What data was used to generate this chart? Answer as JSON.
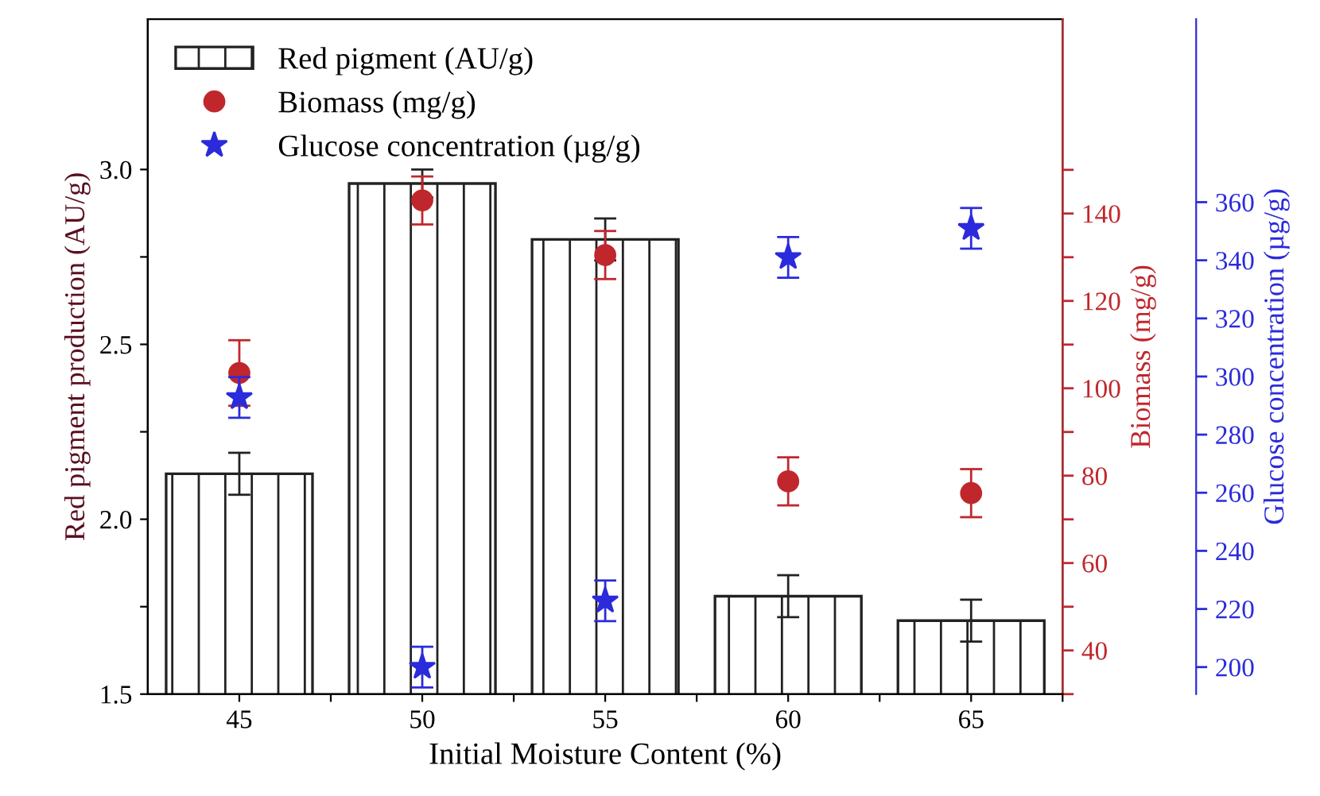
{
  "chart_data": {
    "type": "bar",
    "xlabel": "Initial Moisture Content (%)",
    "ylabel": "Red pigment production (AU/g)",
    "y2label": "Biomass (mg/g)",
    "y3label": "Glucose concentration (µg/g)",
    "x": [
      45,
      50,
      55,
      60,
      65
    ],
    "xlim": [
      42.5,
      67.5
    ],
    "xticks": [
      45,
      {
        "value": 47.5,
        "label": null
      },
      50,
      {
        "value": 52.5,
        "label": null
      },
      55,
      {
        "value": 57.5,
        "label": null
      },
      60,
      {
        "value": 62.5,
        "label": null
      },
      65,
      {
        "value": 67.5,
        "label": null
      }
    ],
    "ylim": [
      1.5,
      3.43
    ],
    "yticks": [
      1.5,
      {
        "value": 1.75,
        "label": null
      },
      {
        "value": 2,
        "label": "2.0"
      },
      {
        "value": 2.25,
        "label": null
      },
      2.5,
      {
        "value": 2.75,
        "label": null
      },
      {
        "value": 3,
        "label": "3.0"
      }
    ],
    "y2lim": [
      30,
      184.5
    ],
    "y2ticks": [
      {
        "value": 30,
        "label": null
      },
      40,
      {
        "value": 50,
        "label": null
      },
      60,
      {
        "value": 70,
        "label": null
      },
      80,
      {
        "value": 90,
        "label": null
      },
      100,
      {
        "value": 110,
        "label": null
      },
      120,
      {
        "value": 130,
        "label": null
      },
      140,
      {
        "value": 150,
        "label": null
      }
    ],
    "y3lim": [
      190.7,
      423
    ],
    "y3ticks": [
      200,
      220,
      240,
      260,
      280,
      300,
      320,
      340,
      360
    ],
    "legend": "top left",
    "series": [
      {
        "name": "Red pigment (AU/g)",
        "color": "#222222",
        "values": [
          2.13,
          2.96,
          2.8,
          1.78,
          1.71
        ],
        "errors": [
          0.06,
          0.04,
          0.06,
          0.06,
          0.06
        ]
      },
      {
        "name": "Biomass (mg/g)",
        "type": "scatter",
        "marker": "circle",
        "axis": "y2",
        "color": "#c0272d",
        "values": [
          103.5,
          143,
          130.5,
          78.7,
          76
        ],
        "errors": [
          7.5,
          5.5,
          5.5,
          5.5,
          5.5
        ]
      },
      {
        "name": "Glucose concentration (µg/g)",
        "type": "scatter",
        "marker": "star",
        "axis": "y3",
        "color": "#2b2bdb",
        "values": [
          292.8,
          200,
          222.8,
          341,
          351
        ],
        "errors": [
          7,
          7,
          7,
          7,
          7
        ]
      }
    ]
  }
}
